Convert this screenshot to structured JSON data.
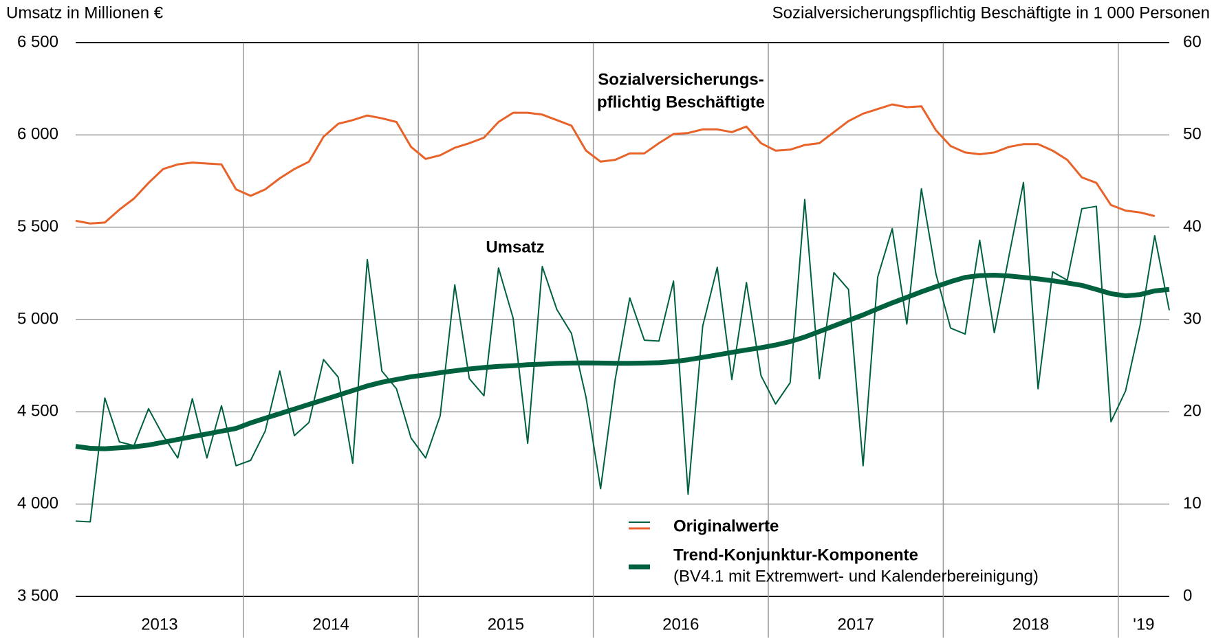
{
  "chart_data": {
    "type": "line",
    "y_axis_label": "Umsatz in Millionen €",
    "y2_axis_label": "Sozialversicherungspflichtig Beschäftigte in 1 000 Personen",
    "ylim": [
      3500,
      6500
    ],
    "yticks": [
      {
        "value": 3500,
        "label": "3 500"
      },
      {
        "value": 4000,
        "label": "4 000"
      },
      {
        "value": 4500,
        "label": "4 500"
      },
      {
        "value": 5000,
        "label": "5 000"
      },
      {
        "value": 5500,
        "label": "5 500"
      },
      {
        "value": 6000,
        "label": "6 000"
      },
      {
        "value": 6500,
        "label": "6 500"
      }
    ],
    "y2lim": [
      0,
      60
    ],
    "y2ticks": [
      0,
      10,
      20,
      30,
      40,
      50,
      60
    ],
    "years": [
      {
        "label": "2013",
        "months": 12
      },
      {
        "label": "2014",
        "months": 12
      },
      {
        "label": "2015",
        "months": 12
      },
      {
        "label": "2016",
        "months": 12
      },
      {
        "label": "2017",
        "months": 12
      },
      {
        "label": "2018",
        "months": 12
      },
      {
        "label": "'19",
        "months": 4
      }
    ],
    "grid": true,
    "series": [
      {
        "name": "Umsatz",
        "color": "#00613f",
        "width": 2,
        "annotation_color": "#00613f",
        "values": [
          3908,
          3904,
          4575,
          4337,
          4317,
          4517,
          4371,
          4250,
          4571,
          4250,
          4533,
          4208,
          4237,
          4396,
          4721,
          4371,
          4442,
          4783,
          4688,
          4221,
          5325,
          4721,
          4625,
          4358,
          4250,
          4479,
          5188,
          4679,
          4587,
          5279,
          5008,
          4329,
          5287,
          5054,
          4925,
          4579,
          4083,
          4675,
          5117,
          4888,
          4883,
          5208,
          4054,
          4963,
          5283,
          4675,
          5200,
          4696,
          4542,
          4658,
          5650,
          4679,
          5254,
          5163,
          4208,
          5229,
          5492,
          4975,
          5708,
          5246,
          4954,
          4921,
          5429,
          4929,
          5342,
          5742,
          4625,
          5258,
          5213,
          5600,
          5613,
          4446,
          4613,
          4971,
          5454,
          5050
        ]
      },
      {
        "name_lines": [
          "Sozialversicherungs-",
          "pflichtig Beschäftigte"
        ],
        "color": "#e8632a",
        "width": 3,
        "axis": "y2",
        "values": [
          40.7,
          40.4,
          40.5,
          41.9,
          43.1,
          44.8,
          46.3,
          46.8,
          47.0,
          46.9,
          46.8,
          44.1,
          43.4,
          44.1,
          45.3,
          46.3,
          47.1,
          49.8,
          51.2,
          51.6,
          52.1,
          51.8,
          51.4,
          48.7,
          47.4,
          47.8,
          48.6,
          49.1,
          49.7,
          51.4,
          52.4,
          52.4,
          52.2,
          51.6,
          51.0,
          48.3,
          47.1,
          47.3,
          48.0,
          48.0,
          49.1,
          50.1,
          50.2,
          50.6,
          50.6,
          50.3,
          50.9,
          49.1,
          48.3,
          48.4,
          48.9,
          49.1,
          50.3,
          51.5,
          52.3,
          52.8,
          53.3,
          53.0,
          53.1,
          50.5,
          48.8,
          48.1,
          47.9,
          48.1,
          48.7,
          49.0,
          49.0,
          48.3,
          47.3,
          45.4,
          44.8,
          42.4,
          41.8,
          41.6,
          41.2,
          null
        ]
      },
      {
        "color": "#00613f",
        "width": 7,
        "values": [
          4313,
          4302,
          4300,
          4305,
          4310,
          4320,
          4335,
          4350,
          4365,
          4380,
          4395,
          4410,
          4440,
          4465,
          4490,
          4515,
          4540,
          4565,
          4590,
          4615,
          4640,
          4660,
          4675,
          4690,
          4700,
          4712,
          4722,
          4732,
          4740,
          4746,
          4750,
          4755,
          4758,
          4762,
          4764,
          4765,
          4764,
          4763,
          4763,
          4764,
          4766,
          4772,
          4782,
          4795,
          4808,
          4822,
          4835,
          4847,
          4862,
          4880,
          4905,
          4935,
          4965,
          4995,
          5025,
          5058,
          5090,
          5120,
          5150,
          5178,
          5205,
          5228,
          5238,
          5240,
          5236,
          5228,
          5220,
          5210,
          5198,
          5185,
          5163,
          5140,
          5128,
          5135,
          5155,
          5163
        ]
      }
    ],
    "legend": [
      {
        "label": "Originalwerte",
        "series": [
          0,
          1
        ]
      },
      {
        "label": "Trend-Konjunktur-Komponente",
        "note": "(BV4.1 mit Extremwert- und Kalenderbereinigung)",
        "series": [
          2
        ]
      }
    ]
  }
}
